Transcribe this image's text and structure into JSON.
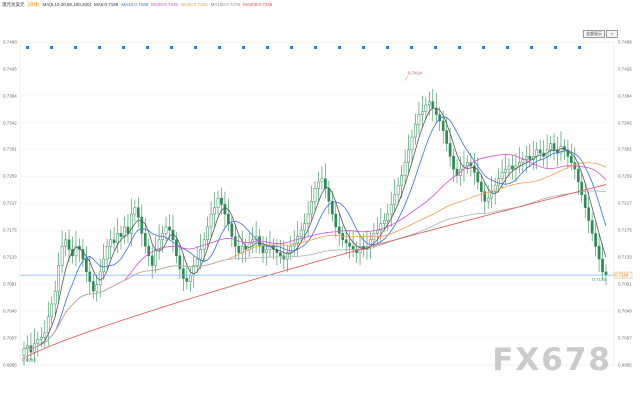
{
  "top_legend": {
    "symbol": "澳元兑美元",
    "period": "(日线)",
    "ma_params": "MA(5,10,30,60,100,200)",
    "ma5": "MA5:0.7159",
    "ma10": "MA10:0.7168",
    "ma30": "MA30:0.7248",
    "ma60": "MA60:0.7269",
    "ma100": "MA100:0.7276",
    "ma200": "MA200:0.7246"
  },
  "controls": {
    "label": "全部显示",
    "close": "×"
  },
  "watermark": "FX678",
  "colors": {
    "candle": "#2e8b57",
    "ma5": "#555555",
    "ma10": "#3a6fd8",
    "ma30": "#d54fd5",
    "ma60": "#f0a04a",
    "ma100": "#b0b0b0",
    "ma200": "#d9534f",
    "price_line": "#7ab0e6",
    "marker": "#2e86de"
  },
  "chart_data": {
    "type": "candlestick",
    "y_ticks": [
      "0.7468",
      "0.7426",
      "0.7384",
      "0.7342",
      "0.7301",
      "0.7259",
      "0.7217",
      "0.7175",
      "0.7133",
      "0.7091",
      "0.7049",
      "0.7007",
      "0.6965"
    ],
    "ylim": [
      0.6965,
      0.7468
    ],
    "annotations": {
      "high": "0.7414",
      "low": "0.6983",
      "last": "0.7105",
      "last_tag": "0.7110"
    },
    "close": [
      0.699,
      0.6995,
      0.6985,
      0.6998,
      0.7005,
      0.7008,
      0.7015,
      0.704,
      0.706,
      0.708,
      0.712,
      0.715,
      0.716,
      0.7145,
      0.7135,
      0.715,
      0.7145,
      0.713,
      0.711,
      0.7095,
      0.708,
      0.709,
      0.711,
      0.713,
      0.715,
      0.716,
      0.7155,
      0.717,
      0.7165,
      0.718,
      0.717,
      0.72,
      0.721,
      0.7195,
      0.717,
      0.715,
      0.7135,
      0.712,
      0.7145,
      0.716,
      0.717,
      0.718,
      0.7175,
      0.716,
      0.7135,
      0.7115,
      0.71,
      0.7095,
      0.7105,
      0.712,
      0.713,
      0.7145,
      0.716,
      0.718,
      0.72,
      0.721,
      0.7225,
      0.7215,
      0.72,
      0.7185,
      0.7165,
      0.715,
      0.714,
      0.715,
      0.7145,
      0.7155,
      0.716,
      0.7165,
      0.715,
      0.714,
      0.7145,
      0.715,
      0.7145,
      0.714,
      0.7135,
      0.713,
      0.714,
      0.715,
      0.7155,
      0.7165,
      0.7175,
      0.7185,
      0.72,
      0.722,
      0.724,
      0.725,
      0.7255,
      0.724,
      0.722,
      0.72,
      0.718,
      0.717,
      0.716,
      0.7155,
      0.715,
      0.7145,
      0.714,
      0.715,
      0.7145,
      0.715,
      0.716,
      0.717,
      0.7175,
      0.7185,
      0.719,
      0.72,
      0.7215,
      0.723,
      0.7245,
      0.726,
      0.728,
      0.73,
      0.732,
      0.734,
      0.7355,
      0.736,
      0.737,
      0.7375,
      0.7365,
      0.7355,
      0.7345,
      0.733,
      0.731,
      0.729,
      0.727,
      0.726,
      0.727,
      0.7275,
      0.728,
      0.7275,
      0.7265,
      0.725,
      0.7235,
      0.722,
      0.7225,
      0.7235,
      0.7245,
      0.7255,
      0.7265,
      0.727,
      0.7275,
      0.727,
      0.7275,
      0.728,
      0.7285,
      0.729,
      0.7285,
      0.729,
      0.73,
      0.7295,
      0.729,
      0.73,
      0.731,
      0.73,
      0.7295,
      0.7305,
      0.73,
      0.729,
      0.728,
      0.727,
      0.725,
      0.723,
      0.721,
      0.719,
      0.717,
      0.715,
      0.713,
      0.711,
      0.7105
    ]
  }
}
